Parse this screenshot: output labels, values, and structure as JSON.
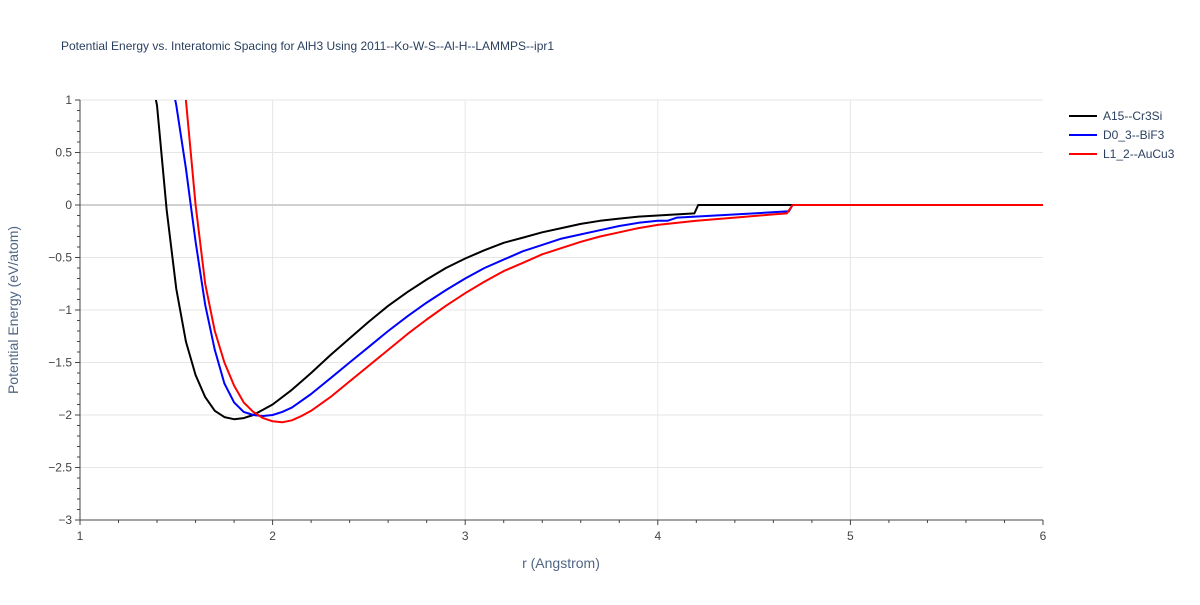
{
  "chart_data": {
    "type": "line",
    "title": "Potential Energy vs. Interatomic Spacing for AlH3 Using 2011--Ko-W-S--Al-H--LAMMPS--ipr1",
    "xlabel": "r (Angstrom)",
    "ylabel": "Potential Energy (eV/atom)",
    "xlim": [
      1,
      6
    ],
    "ylim": [
      -3,
      1
    ],
    "x_ticks": [
      1,
      2,
      3,
      4,
      5,
      6
    ],
    "x_tick_labels": [
      "1",
      "2",
      "3",
      "4",
      "5",
      "6"
    ],
    "y_ticks": [
      1,
      0.5,
      0,
      -0.5,
      -1,
      -1.5,
      -2,
      -2.5,
      -3
    ],
    "y_tick_labels": [
      "1",
      "0.5",
      "0",
      "−0.5",
      "−1",
      "−1.5",
      "−2",
      "−2.5",
      "−3"
    ],
    "grid": true,
    "legend_position": "top-right",
    "series": [
      {
        "name": "A15--Cr3Si",
        "color": "#000000",
        "x": [
          1.35,
          1.4,
          1.45,
          1.5,
          1.55,
          1.6,
          1.65,
          1.7,
          1.75,
          1.8,
          1.85,
          1.9,
          1.95,
          2.0,
          2.1,
          2.2,
          2.3,
          2.4,
          2.5,
          2.6,
          2.7,
          2.8,
          2.9,
          3.0,
          3.1,
          3.2,
          3.3,
          3.4,
          3.5,
          3.6,
          3.7,
          3.8,
          3.9,
          4.0,
          4.1,
          4.19,
          4.21,
          4.3,
          4.5,
          4.7,
          6.0
        ],
        "y": [
          1.4,
          0.95,
          -0.05,
          -0.8,
          -1.3,
          -1.62,
          -1.83,
          -1.96,
          -2.02,
          -2.04,
          -2.03,
          -2.0,
          -1.95,
          -1.9,
          -1.76,
          -1.6,
          -1.43,
          -1.27,
          -1.11,
          -0.96,
          -0.83,
          -0.71,
          -0.6,
          -0.51,
          -0.43,
          -0.36,
          -0.31,
          -0.26,
          -0.22,
          -0.18,
          -0.15,
          -0.13,
          -0.11,
          -0.1,
          -0.09,
          -0.08,
          0.0,
          0.0,
          0.0,
          0.0,
          0.0
        ]
      },
      {
        "name": "D0_3--BiF3",
        "color": "#0000ff",
        "x": [
          1.45,
          1.5,
          1.55,
          1.6,
          1.65,
          1.7,
          1.75,
          1.8,
          1.85,
          1.9,
          1.95,
          2.0,
          2.05,
          2.1,
          2.2,
          2.3,
          2.4,
          2.5,
          2.6,
          2.7,
          2.8,
          2.9,
          3.0,
          3.1,
          3.2,
          3.3,
          3.4,
          3.5,
          3.6,
          3.7,
          3.8,
          3.9,
          4.0,
          4.05,
          4.1,
          4.3,
          4.5,
          4.68,
          4.7,
          6.0
        ],
        "y": [
          1.4,
          0.95,
          0.35,
          -0.35,
          -0.95,
          -1.38,
          -1.7,
          -1.88,
          -1.97,
          -2.0,
          -2.01,
          -2.0,
          -1.97,
          -1.93,
          -1.8,
          -1.65,
          -1.5,
          -1.35,
          -1.2,
          -1.06,
          -0.93,
          -0.81,
          -0.7,
          -0.6,
          -0.52,
          -0.44,
          -0.38,
          -0.32,
          -0.28,
          -0.24,
          -0.2,
          -0.17,
          -0.15,
          -0.15,
          -0.12,
          -0.1,
          -0.08,
          -0.06,
          0.0,
          0.0
        ]
      },
      {
        "name": "L1_2--AuCu3",
        "color": "#ff0000",
        "x": [
          1.5,
          1.55,
          1.6,
          1.65,
          1.7,
          1.75,
          1.8,
          1.85,
          1.9,
          1.95,
          2.0,
          2.05,
          2.1,
          2.15,
          2.2,
          2.3,
          2.4,
          2.5,
          2.6,
          2.7,
          2.8,
          2.9,
          3.0,
          3.1,
          3.2,
          3.3,
          3.4,
          3.5,
          3.6,
          3.7,
          3.8,
          3.9,
          4.0,
          4.2,
          4.4,
          4.6,
          4.67,
          4.7,
          6.0
        ],
        "y": [
          1.5,
          1.0,
          0.0,
          -0.75,
          -1.2,
          -1.5,
          -1.72,
          -1.88,
          -1.97,
          -2.03,
          -2.06,
          -2.07,
          -2.05,
          -2.01,
          -1.96,
          -1.83,
          -1.68,
          -1.53,
          -1.38,
          -1.23,
          -1.09,
          -0.96,
          -0.84,
          -0.73,
          -0.63,
          -0.55,
          -0.47,
          -0.41,
          -0.35,
          -0.3,
          -0.26,
          -0.22,
          -0.19,
          -0.15,
          -0.12,
          -0.09,
          -0.08,
          0.0,
          0.0
        ]
      }
    ]
  }
}
